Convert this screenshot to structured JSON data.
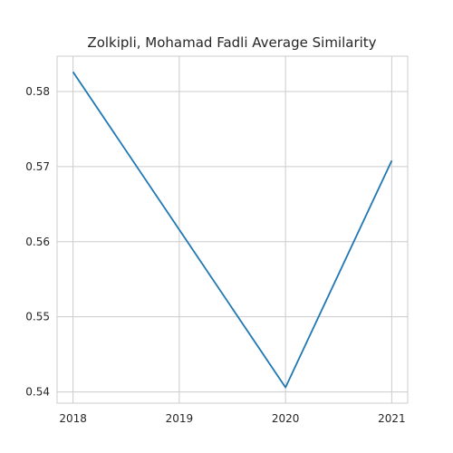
{
  "chart_data": {
    "type": "line",
    "title": "Zolkipli, Mohamad Fadli Average Similarity",
    "xlabel": "",
    "ylabel": "",
    "x": [
      2018,
      2019,
      2020,
      2021
    ],
    "x_tick_labels": [
      "2018",
      "2019",
      "2020",
      "2021"
    ],
    "y_ticks": [
      0.54,
      0.55,
      0.56,
      0.57,
      0.58
    ],
    "y_tick_labels": [
      "0.54",
      "0.55",
      "0.56",
      "0.57",
      "0.58"
    ],
    "series": [
      {
        "x": [
          2018,
          2020,
          2021
        ],
        "values": [
          0.5826,
          0.5406,
          0.5708
        ],
        "color": "#1f77b4"
      }
    ],
    "xlim": [
      2017.85,
      2021.15
    ],
    "ylim": [
      0.5385,
      0.5847
    ],
    "grid": true,
    "legend": "none"
  }
}
